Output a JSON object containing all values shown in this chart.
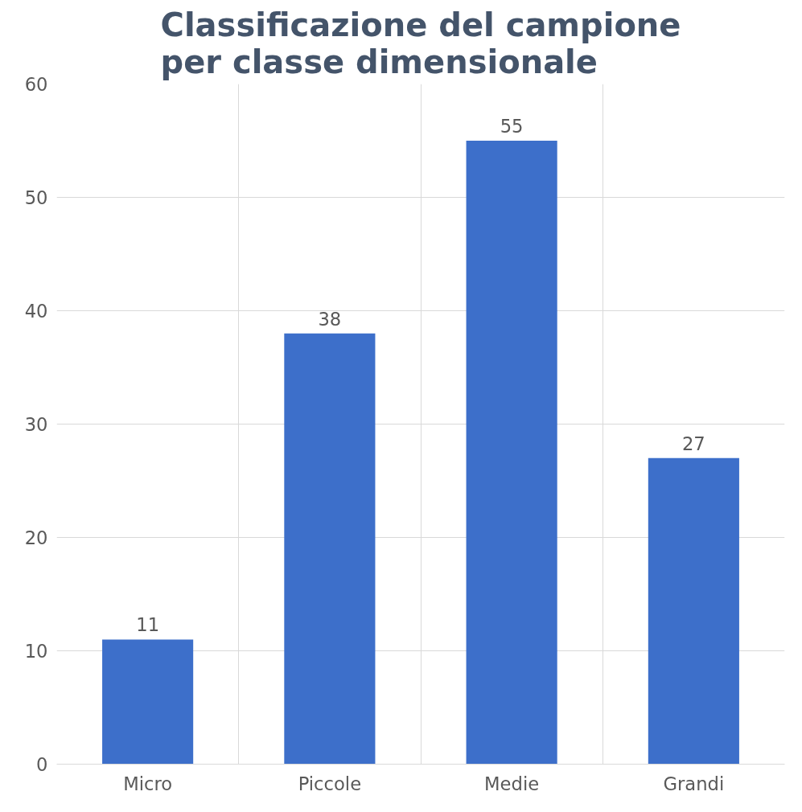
{
  "chart_data": {
    "type": "bar",
    "title": "Classificazione del campione per classe dimensionale",
    "categories": [
      "Micro",
      "Piccole",
      "Medie",
      "Grandi"
    ],
    "values": [
      11,
      38,
      55,
      27
    ],
    "color": "#3d6fca",
    "ylim": [
      0,
      60
    ],
    "yticks": [
      0,
      10,
      20,
      30,
      40,
      50,
      60
    ],
    "grid": true,
    "data_labels": true
  }
}
